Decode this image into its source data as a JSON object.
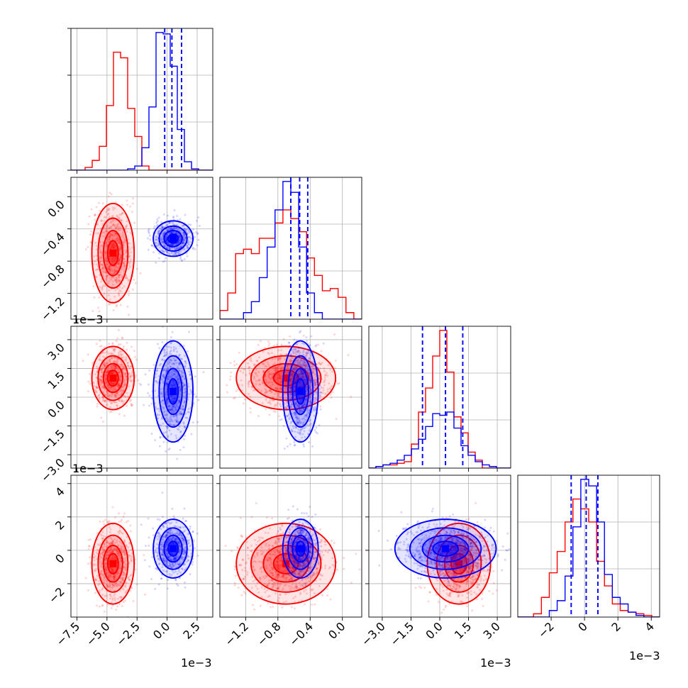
{
  "colors": {
    "red": "#ff0000",
    "blue": "#0000ff",
    "grid": "#b0b0b0"
  },
  "offsets": {
    "x0": "1e−3",
    "x2": "1e−3",
    "x3": "1e−3",
    "y1": "1e−3",
    "y2": "1e−3"
  },
  "chart_data": {
    "type": "corner",
    "params": [
      {
        "ticks": [
          -7.5,
          -5.0,
          -2.5,
          0.0,
          2.5
        ],
        "ticklabels": [
          "−7.5",
          "−5.0",
          "−2.5",
          "0.0",
          "2.5"
        ],
        "range": [
          -8.0,
          3.8
        ]
      },
      {
        "ticks": [
          -1.2,
          -0.8,
          -0.4,
          0.0
        ],
        "ticklabels": [
          "−1.2",
          "−0.8",
          "−0.4",
          "0.0"
        ],
        "range": [
          -1.52,
          0.24
        ]
      },
      {
        "ticks": [
          -3.0,
          -1.5,
          0.0,
          1.5,
          3.0
        ],
        "ticklabels": [
          "−3.0",
          "−1.5",
          "0.0",
          "1.5",
          "3.0"
        ],
        "range": [
          -3.7,
          3.7
        ]
      },
      {
        "ticks": [
          -2,
          0,
          2,
          4
        ],
        "ticklabels": [
          "−2",
          "0",
          "2",
          "4"
        ],
        "range": [
          -4.0,
          4.5
        ]
      }
    ],
    "series": [
      {
        "color": "#ff0000",
        "means": [
          -4.5,
          -0.7,
          1.0,
          -0.8
        ],
        "sds": [
          0.8,
          0.28,
          0.75,
          1.1
        ],
        "hist": [
          [
            0,
            0,
            2,
            7,
            17,
            46,
            84,
            80,
            44,
            24,
            3,
            0,
            0,
            0,
            0,
            0,
            0,
            0,
            0,
            0
          ],
          [
            4,
            12,
            30,
            32,
            30,
            37,
            37,
            44,
            50,
            46,
            40,
            28,
            20,
            13,
            14,
            10,
            3,
            0
          ],
          [
            0,
            1,
            2,
            2,
            3,
            4,
            15,
            35,
            50,
            70,
            86,
            60,
            32,
            22,
            10,
            5,
            0,
            0,
            0,
            0
          ],
          [
            0,
            0,
            2,
            12,
            27,
            40,
            58,
            72,
            66,
            58,
            34,
            19,
            8,
            4,
            3,
            2,
            1,
            0
          ]
        ]
      },
      {
        "color": "#0000ff",
        "means": [
          0.5,
          -0.52,
          0.3,
          0.1
        ],
        "sds": [
          0.75,
          0.1,
          1.2,
          0.8
        ],
        "hist": [
          [
            0,
            0,
            0,
            0,
            0,
            0,
            0,
            0,
            1,
            3,
            16,
            45,
            98,
            97,
            74,
            29,
            6,
            1,
            0,
            0
          ],
          [
            0,
            0,
            0,
            3,
            8,
            19,
            33,
            50,
            63,
            58,
            33,
            12,
            3,
            0,
            0,
            0,
            0,
            0
          ],
          [
            0,
            1,
            2,
            3,
            5,
            8,
            12,
            18,
            26,
            34,
            33,
            35,
            25,
            14,
            8,
            4,
            2,
            1,
            0,
            0
          ],
          [
            0,
            0,
            0,
            0,
            4,
            10,
            25,
            55,
            84,
            80,
            58,
            26,
            12,
            8,
            3,
            1,
            0,
            0
          ]
        ],
        "quantiles": [
          [
            -0.2,
            0.4,
            1.2
          ],
          [
            -0.64,
            -0.53,
            -0.43
          ],
          [
            -0.9,
            0.3,
            1.2
          ],
          [
            -0.8,
            0.1,
            0.8
          ]
        ]
      }
    ]
  }
}
